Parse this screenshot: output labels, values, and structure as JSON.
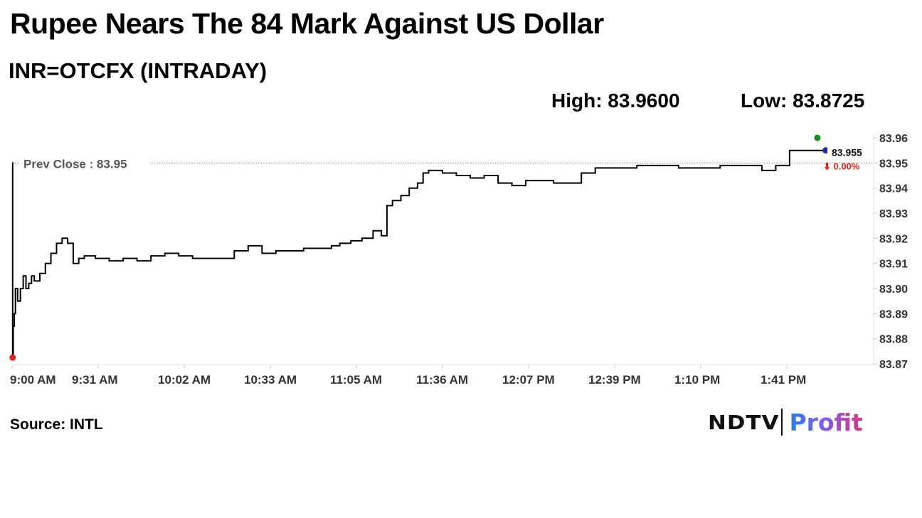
{
  "header": {
    "title": "Rupee Nears The 84 Mark Against US Dollar",
    "subtitle": "INR=OTCFX (INTRADAY)",
    "high_text": "High: 83.9600",
    "low_text": "Low: 83.8725"
  },
  "footer": {
    "source": "Source: INTL",
    "logo_ndtv": "NDTV",
    "logo_profit": "Profit"
  },
  "colors": {
    "line": "#000000",
    "prev_close_line": "#e05555",
    "high_marker": "#1a8a1a",
    "low_marker": "#e02020",
    "last_marker": "#1f2a9e",
    "change_negative": "#e02020"
  },
  "chart_data": {
    "type": "line",
    "x_ticks": [
      "9:00 AM",
      "9:31 AM",
      "10:02 AM",
      "10:33 AM",
      "11:05 AM",
      "11:36 AM",
      "12:07 PM",
      "12:39 PM",
      "1:10 PM",
      "1:41 PM"
    ],
    "y_ticks": [
      "83.96",
      "83.95",
      "83.94",
      "83.93",
      "83.92",
      "83.91",
      "83.90",
      "83.89",
      "83.88",
      "83.87"
    ],
    "ylim": [
      83.87,
      83.96
    ],
    "prev_close": 83.95,
    "prev_close_label": "Prev Close : 83.95",
    "last_value_label": "83.955",
    "change_label": "⬇ 0.00%",
    "series": [
      {
        "points": [
          [
            0,
            83.95
          ],
          [
            0.2,
            83.8725
          ],
          [
            0.4,
            83.885
          ],
          [
            0.8,
            83.89
          ],
          [
            1.2,
            83.9
          ],
          [
            2,
            83.895
          ],
          [
            3,
            83.9
          ],
          [
            4,
            83.905
          ],
          [
            5,
            83.9
          ],
          [
            6,
            83.902
          ],
          [
            7,
            83.905
          ],
          [
            8,
            83.903
          ],
          [
            10,
            83.906
          ],
          [
            12,
            83.91
          ],
          [
            14,
            83.914
          ],
          [
            16,
            83.918
          ],
          [
            18,
            83.92
          ],
          [
            20,
            83.918
          ],
          [
            22,
            83.91
          ],
          [
            24,
            83.912
          ],
          [
            26,
            83.913
          ],
          [
            30,
            83.912
          ],
          [
            35,
            83.911
          ],
          [
            40,
            83.912
          ],
          [
            45,
            83.911
          ],
          [
            50,
            83.913
          ],
          [
            55,
            83.914
          ],
          [
            60,
            83.913
          ],
          [
            65,
            83.912
          ],
          [
            70,
            83.912
          ],
          [
            75,
            83.912
          ],
          [
            80,
            83.915
          ],
          [
            85,
            83.917
          ],
          [
            90,
            83.914
          ],
          [
            95,
            83.915
          ],
          [
            100,
            83.915
          ],
          [
            105,
            83.916
          ],
          [
            110,
            83.916
          ],
          [
            115,
            83.917
          ],
          [
            118,
            83.918
          ],
          [
            122,
            83.919
          ],
          [
            126,
            83.92
          ],
          [
            128,
            83.92
          ],
          [
            130,
            83.923
          ],
          [
            133,
            83.921
          ],
          [
            135,
            83.933
          ],
          [
            137,
            83.935
          ],
          [
            140,
            83.937
          ],
          [
            143,
            83.94
          ],
          [
            146,
            83.942
          ],
          [
            148,
            83.946
          ],
          [
            150,
            83.947
          ],
          [
            155,
            83.946
          ],
          [
            160,
            83.945
          ],
          [
            165,
            83.944
          ],
          [
            170,
            83.945
          ],
          [
            175,
            83.942
          ],
          [
            180,
            83.941
          ],
          [
            185,
            83.943
          ],
          [
            190,
            83.943
          ],
          [
            195,
            83.942
          ],
          [
            200,
            83.942
          ],
          [
            205,
            83.946
          ],
          [
            210,
            83.948
          ],
          [
            215,
            83.948
          ],
          [
            220,
            83.948
          ],
          [
            225,
            83.949
          ],
          [
            230,
            83.949
          ],
          [
            235,
            83.949
          ],
          [
            240,
            83.948
          ],
          [
            245,
            83.948
          ],
          [
            250,
            83.948
          ],
          [
            255,
            83.949
          ],
          [
            260,
            83.949
          ],
          [
            265,
            83.949
          ],
          [
            270,
            83.947
          ],
          [
            275,
            83.949
          ],
          [
            280,
            83.955
          ],
          [
            282,
            83.955
          ],
          [
            285,
            83.955
          ],
          [
            288,
            83.955
          ],
          [
            290,
            83.955
          ],
          [
            293,
            83.955
          ]
        ]
      }
    ]
  }
}
